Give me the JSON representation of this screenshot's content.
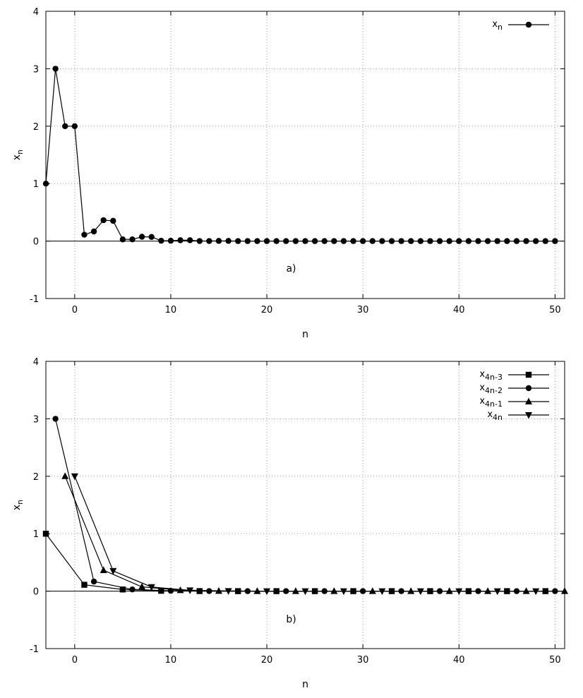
{
  "chart_data": [
    {
      "type": "line",
      "panel_label": "a)",
      "xlabel": "n",
      "ylabel": {
        "base": "x",
        "sub": "n"
      },
      "xlim": [
        -3,
        51
      ],
      "ylim": [
        -1,
        4
      ],
      "xticks": [
        0,
        10,
        20,
        30,
        40,
        50
      ],
      "yticks": [
        -1,
        0,
        1,
        2,
        3,
        4
      ],
      "grid": true,
      "legend_position": "top-right",
      "series": [
        {
          "legend": {
            "base": "x",
            "sub": "n"
          },
          "marker": "circle",
          "x": [
            -3,
            -2,
            -1,
            0,
            1,
            2,
            3,
            4,
            5,
            6,
            7,
            8,
            9,
            10,
            11,
            12,
            13,
            14,
            15,
            16,
            17,
            18,
            19,
            20,
            21,
            22,
            23,
            24,
            25,
            26,
            27,
            28,
            29,
            30,
            31,
            32,
            33,
            34,
            35,
            36,
            37,
            38,
            39,
            40,
            41,
            42,
            43,
            44,
            45,
            46,
            47,
            48,
            49,
            50
          ],
          "y": [
            1,
            3,
            2,
            2,
            0.111,
            0.167,
            0.364,
            0.353,
            0.029,
            0.03,
            0.075,
            0.072,
            0.006,
            0.006,
            0.015,
            0.015,
            0.001,
            0.001,
            0.003,
            0.003,
            0,
            0,
            0,
            0,
            0,
            0,
            0,
            0,
            0,
            0,
            0,
            0,
            0,
            0,
            0,
            0,
            0,
            0,
            0,
            0,
            0,
            0,
            0,
            0,
            0,
            0,
            0,
            0,
            0,
            0,
            0,
            0,
            0,
            0
          ]
        }
      ]
    },
    {
      "type": "line",
      "panel_label": "b)",
      "xlabel": "n",
      "ylabel": {
        "base": "x",
        "sub": "n"
      },
      "xlim": [
        -3,
        51
      ],
      "ylim": [
        -1,
        4
      ],
      "xticks": [
        0,
        10,
        20,
        30,
        40,
        50
      ],
      "yticks": [
        -1,
        0,
        1,
        2,
        3,
        4
      ],
      "grid": true,
      "legend_position": "top-right",
      "series": [
        {
          "legend": {
            "base": "x",
            "sub": "4n-3"
          },
          "marker": "square",
          "x": [
            -3,
            1,
            5,
            9,
            13,
            17,
            21,
            25,
            29,
            33,
            37,
            41,
            45,
            49
          ],
          "y": [
            1,
            0.111,
            0.029,
            0.006,
            0.001,
            0,
            0,
            0,
            0,
            0,
            0,
            0,
            0,
            0
          ]
        },
        {
          "legend": {
            "base": "x",
            "sub": "4n-2"
          },
          "marker": "circle",
          "x": [
            -2,
            2,
            6,
            10,
            14,
            18,
            22,
            26,
            30,
            34,
            38,
            42,
            46,
            50
          ],
          "y": [
            3,
            0.167,
            0.03,
            0.006,
            0.001,
            0,
            0,
            0,
            0,
            0,
            0,
            0,
            0,
            0
          ]
        },
        {
          "legend": {
            "base": "x",
            "sub": "4n-1"
          },
          "marker": "triangle-up",
          "x": [
            -1,
            3,
            7,
            11,
            15,
            19,
            23,
            27,
            31,
            35,
            39,
            43,
            47,
            51
          ],
          "y": [
            2,
            0.364,
            0.075,
            0.015,
            0.003,
            0,
            0,
            0,
            0,
            0,
            0,
            0,
            0,
            0
          ]
        },
        {
          "legend": {
            "base": "x",
            "sub": "4n"
          },
          "marker": "triangle-down",
          "x": [
            0,
            4,
            8,
            12,
            16,
            20,
            24,
            28,
            32,
            36,
            40,
            44,
            48
          ],
          "y": [
            2,
            0.353,
            0.072,
            0.015,
            0.003,
            0,
            0,
            0,
            0,
            0,
            0,
            0,
            0
          ]
        }
      ]
    }
  ]
}
